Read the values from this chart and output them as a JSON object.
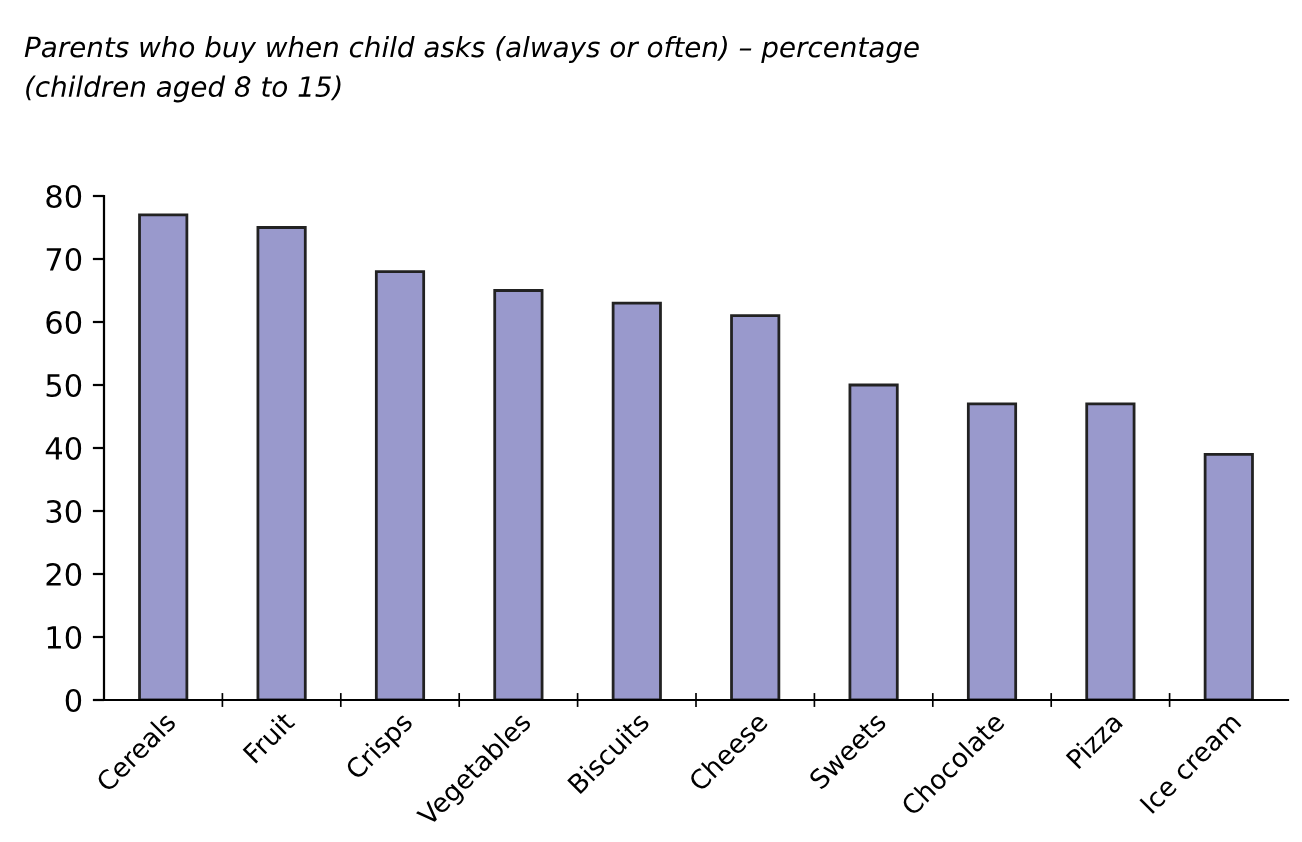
{
  "chart_data": {
    "type": "bar",
    "title": "Parents who buy when child asks (always or often) – percentage\n(children aged 8 to 15)",
    "categories": [
      "Cereals",
      "Fruit",
      "Crisps",
      "Vegetables",
      "Biscuits",
      "Cheese",
      "Sweets",
      "Chocolate",
      "Pizza",
      "Ice cream"
    ],
    "values": [
      77,
      75,
      68,
      65,
      63,
      61,
      50,
      47,
      47,
      39
    ],
    "color": "#9999cc",
    "ylim": [
      0,
      80
    ],
    "yticks": [
      0,
      10,
      20,
      30,
      40,
      50,
      60,
      70,
      80
    ],
    "grid": false,
    "legend": false
  }
}
